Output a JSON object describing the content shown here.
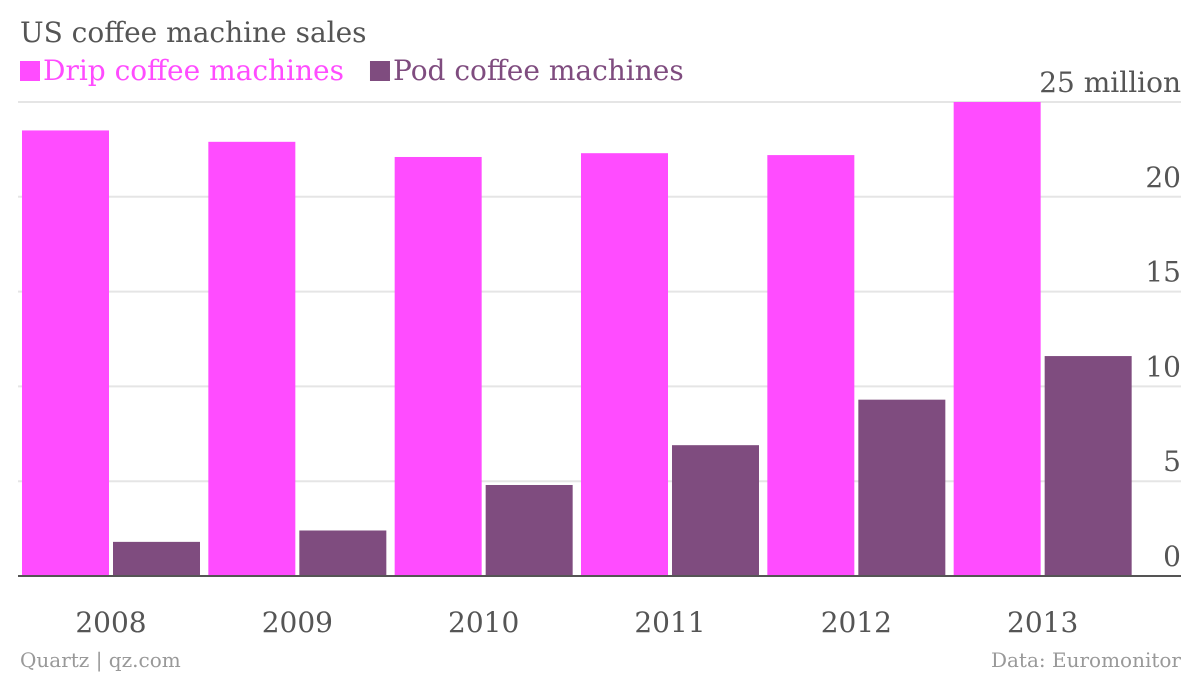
{
  "chart_data": {
    "type": "bar",
    "title": "US coffee machine sales",
    "categories": [
      "2008",
      "2009",
      "2010",
      "2011",
      "2012",
      "2013"
    ],
    "series": [
      {
        "name": "Drip coffee machines",
        "color": "#ff4cff",
        "values": [
          23.5,
          22.9,
          22.1,
          22.3,
          22.2,
          25.0
        ]
      },
      {
        "name": "Pod coffee machines",
        "color": "#7f4c7f",
        "values": [
          1.8,
          2.4,
          4.8,
          6.9,
          9.3,
          11.6
        ]
      }
    ],
    "ylim": [
      0,
      25
    ],
    "yticks": [
      {
        "value": 0,
        "label": "0"
      },
      {
        "value": 5,
        "label": "5"
      },
      {
        "value": 10,
        "label": "10"
      },
      {
        "value": 15,
        "label": "15"
      },
      {
        "value": 20,
        "label": "20"
      },
      {
        "value": 25,
        "label": "25 million"
      }
    ],
    "legend_position": "top-left",
    "grid": true,
    "axis_side": "right"
  },
  "footer": {
    "credit": "Quartz | qz.com",
    "source": "Data: Euromonitor"
  },
  "colors": {
    "text": "#555555",
    "footer_text": "#999999",
    "grid": "#e5e5e5",
    "baseline": "#555555"
  }
}
